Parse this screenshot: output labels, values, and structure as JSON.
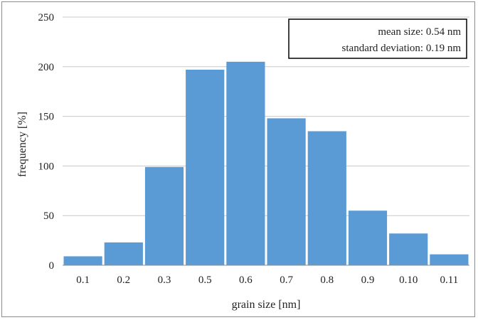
{
  "chart_data": {
    "type": "bar",
    "categories": [
      "0.1",
      "0.2",
      "0.3",
      "0.5",
      "0.6",
      "0.7",
      "0.8",
      "0.9",
      "0.10",
      "0.11"
    ],
    "values": [
      9,
      23,
      99,
      197,
      205,
      148,
      135,
      55,
      32,
      11
    ],
    "xlabel": "grain size [nm]",
    "ylabel": "frequency [%]",
    "ylim": [
      0,
      250
    ],
    "yticks": [
      0,
      50,
      100,
      150,
      200,
      250
    ],
    "grid": true,
    "bar_color": "#5b9bd5",
    "annotation": {
      "mean": "mean size: 0.54 nm",
      "std": "standard deviation: 0.19 nm",
      "placement": "top-right"
    }
  }
}
